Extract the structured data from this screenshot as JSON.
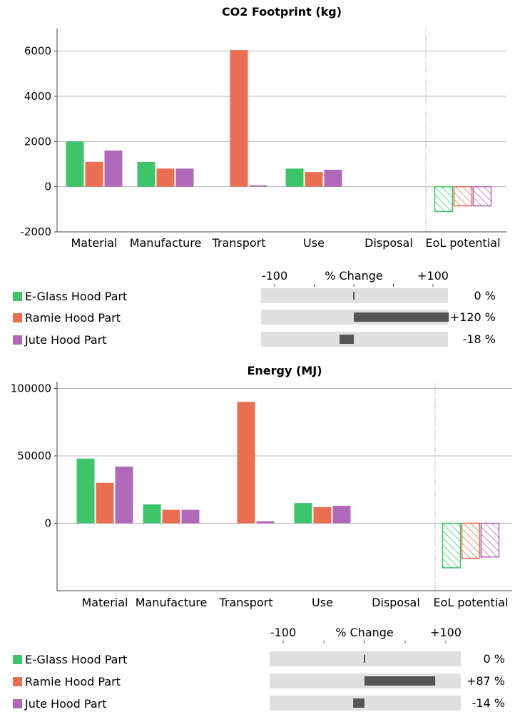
{
  "chart_data": [
    {
      "type": "bar",
      "title": "CO2 Footprint (kg)",
      "categories": [
        "Material",
        "Manufacture",
        "Transport",
        "Use",
        "Disposal",
        "EoL potential"
      ],
      "series": [
        {
          "name": "E-Glass Hood Part",
          "color": "#3ec46a",
          "values": [
            2000,
            1100,
            0,
            800,
            0,
            -1100
          ]
        },
        {
          "name": "Ramie Hood Part",
          "color": "#ea6e52",
          "values": [
            1100,
            800,
            6050,
            650,
            0,
            -850
          ]
        },
        {
          "name": "Jute Hood Part",
          "color": "#b068b8",
          "values": [
            1600,
            800,
            60,
            750,
            0,
            -850
          ]
        }
      ],
      "ylim": [
        -2000,
        7000
      ],
      "yticks": [
        -2000,
        0,
        2000,
        4000,
        6000
      ],
      "ytick_labels": [
        "-2000",
        "0",
        "2000",
        "4000",
        "6000"
      ],
      "hatched_category": "EoL potential",
      "grid": true,
      "change": {
        "axis_title": "% Change",
        "tick_labels": [
          "-100",
          "+100"
        ],
        "range": [
          -100,
          100
        ],
        "values": [
          0,
          120,
          -18
        ],
        "labels": [
          "0 %",
          "+120 %",
          "-18 %"
        ]
      }
    },
    {
      "type": "bar",
      "title": "Energy (MJ)",
      "categories": [
        "Material",
        "Manufacture",
        "Transport",
        "Use",
        "Disposal",
        "EoL potential"
      ],
      "series": [
        {
          "name": "E-Glass Hood Part",
          "color": "#3ec46a",
          "values": [
            48000,
            14000,
            0,
            15000,
            0,
            -33000
          ]
        },
        {
          "name": "Ramie Hood Part",
          "color": "#ea6e52",
          "values": [
            30000,
            10000,
            90000,
            12000,
            0,
            -26000
          ]
        },
        {
          "name": "Jute Hood Part",
          "color": "#b068b8",
          "values": [
            42000,
            10000,
            1500,
            13000,
            0,
            -25000
          ]
        }
      ],
      "ylim": [
        -50000,
        105000
      ],
      "yticks": [
        0,
        50000,
        100000
      ],
      "ytick_labels": [
        "0",
        "50000",
        "100000"
      ],
      "hatched_category": "EoL potential",
      "grid": true,
      "change": {
        "axis_title": "% Change",
        "tick_labels": [
          "-100",
          "+100"
        ],
        "range": [
          -100,
          100
        ],
        "values": [
          0,
          87,
          -14
        ],
        "labels": [
          "0 %",
          "+87 %",
          "-14 %"
        ]
      }
    }
  ]
}
